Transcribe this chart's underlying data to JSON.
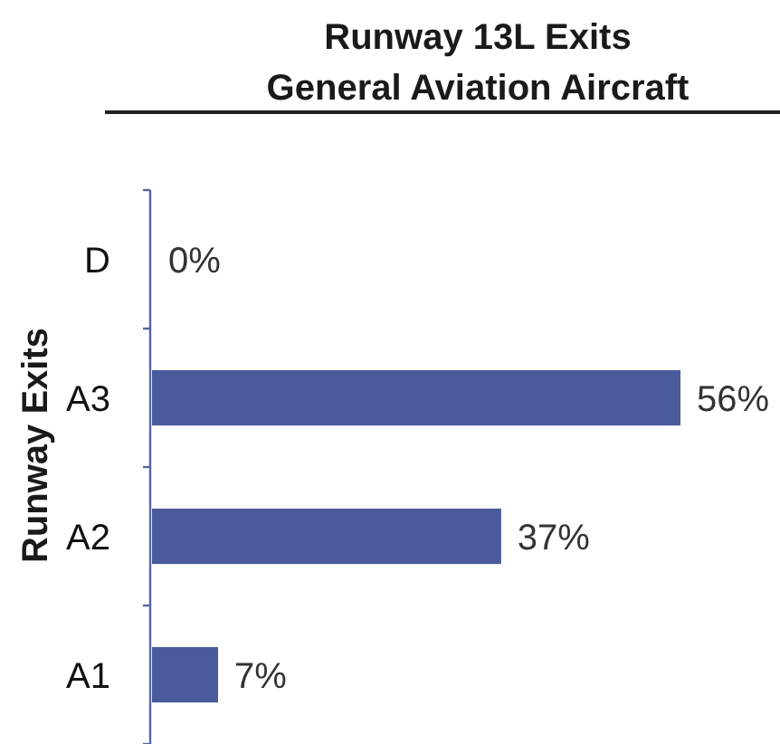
{
  "chart_data": {
    "type": "bar",
    "orientation": "horizontal",
    "title": "Runway 13L Exits",
    "subtitle": "General Aviation Aircraft",
    "ylabel": "Runway Exits",
    "categories": [
      "D",
      "A3",
      "A2",
      "A1"
    ],
    "values": [
      0,
      56,
      37,
      7
    ],
    "value_labels": [
      "0%",
      "56%",
      "37%",
      "7%"
    ],
    "color": "#4a5b9c"
  }
}
